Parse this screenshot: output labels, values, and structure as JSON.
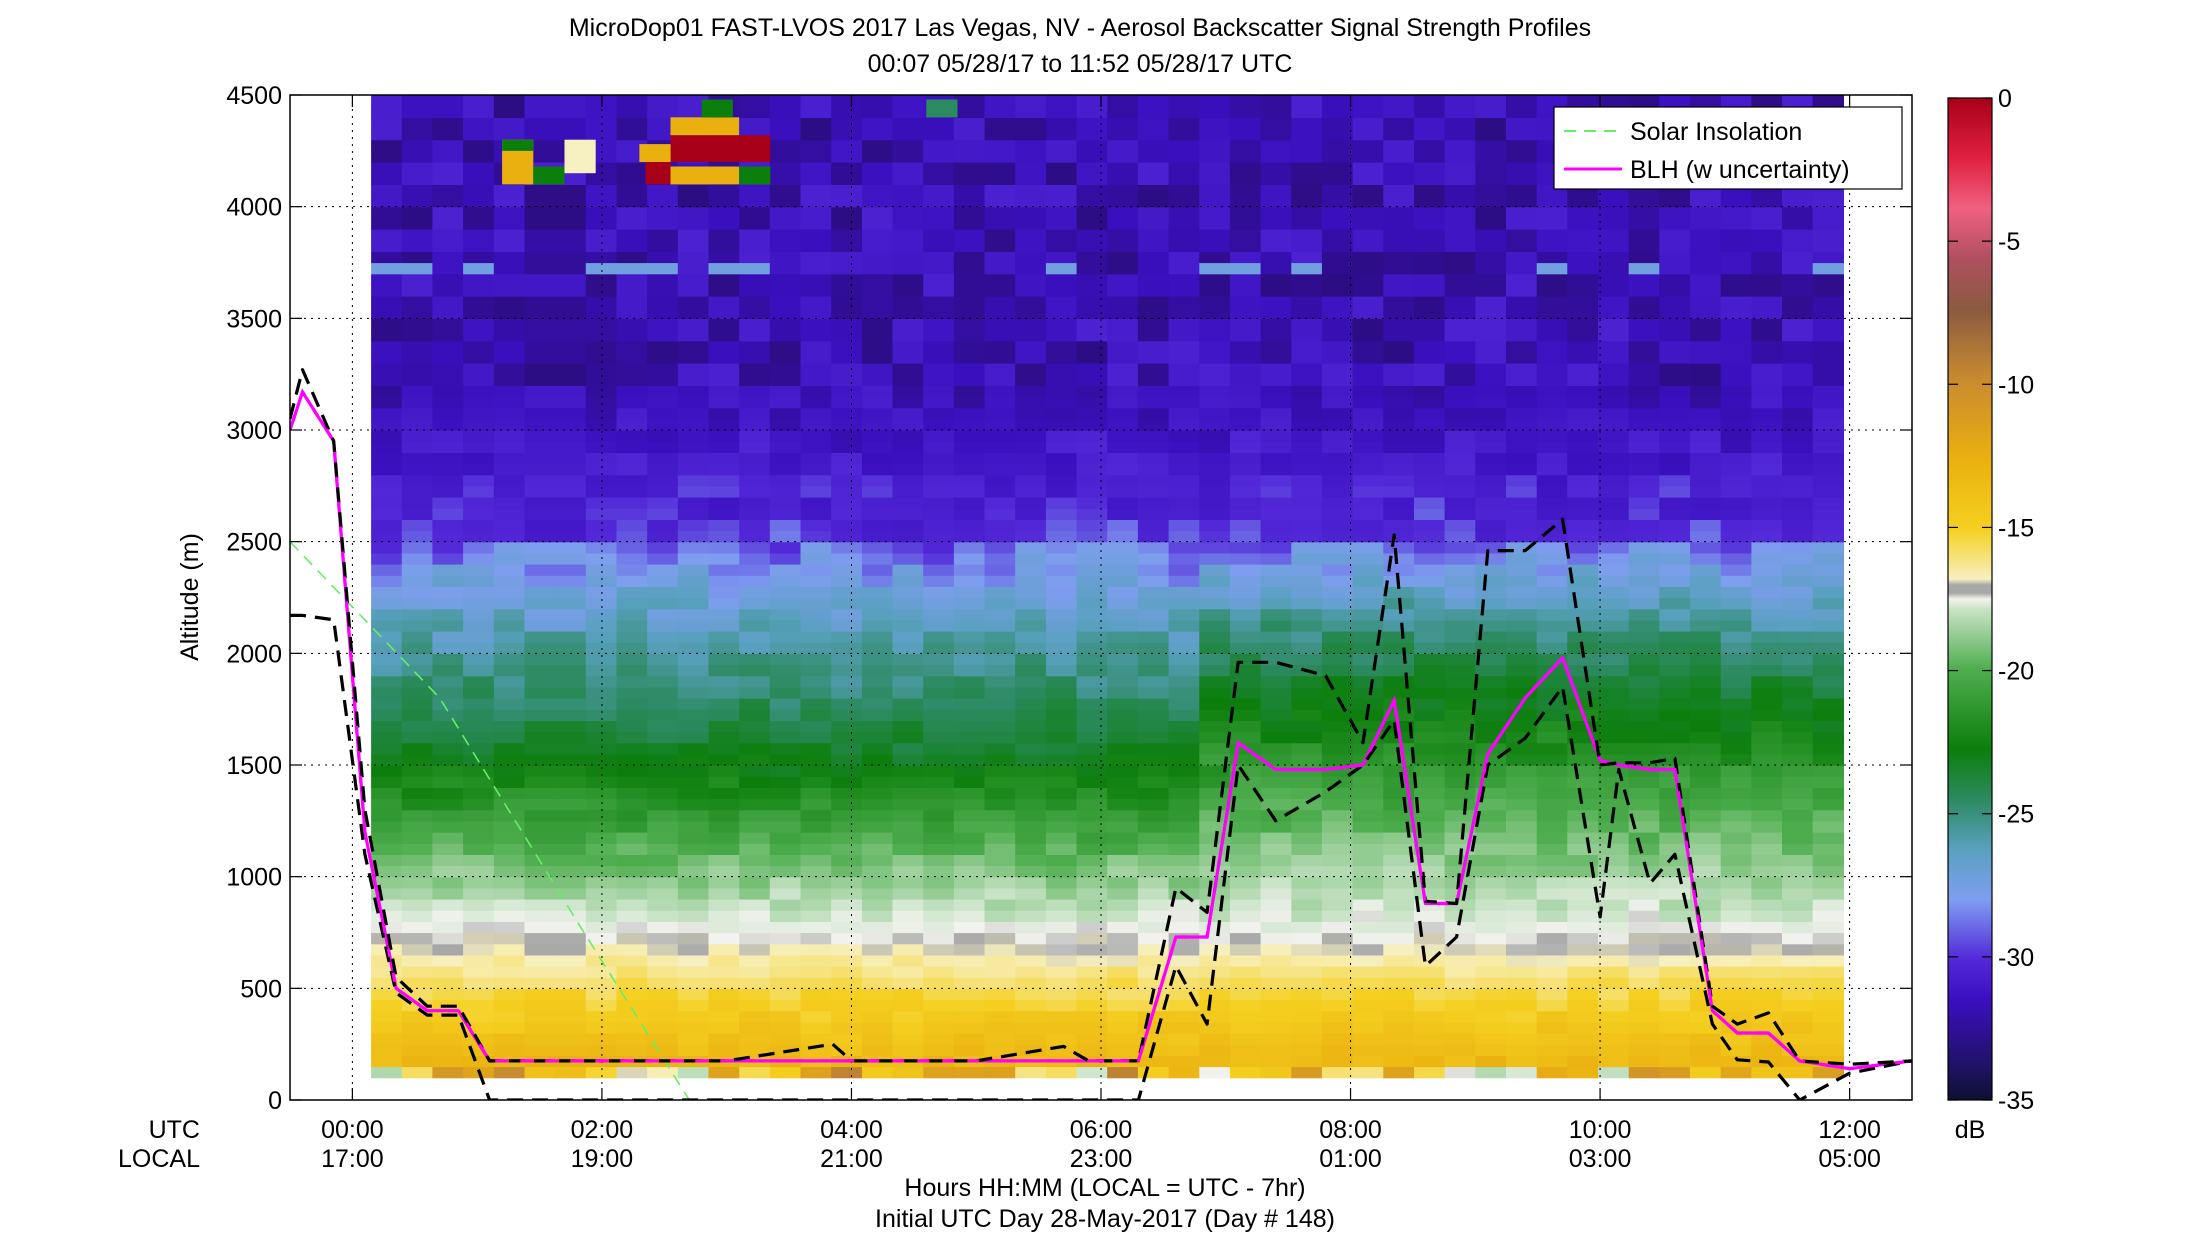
{
  "chart_data": {
    "type": "heatmap",
    "title": "MicroDop01 FAST-LVOS 2017 Las Vegas, NV - Aerosol Backscatter Signal Strength Profiles",
    "subtitle": "00:07 05/28/17 to 11:52 05/28/17  UTC",
    "ylabel": "Altitude (m)",
    "xlabel": "Hours HH:MM  (LOCAL = UTC - 7hr)",
    "footer": "Initial UTC Day 28-May-2017 (Day # 148)",
    "x_row_labels": [
      "UTC",
      "LOCAL"
    ],
    "xlim": [
      -0.5,
      12.5
    ],
    "ylim": [
      0,
      4500
    ],
    "x_ticks": [
      {
        "x": 0,
        "utc": "00:00",
        "local": "17:00"
      },
      {
        "x": 2,
        "utc": "02:00",
        "local": "19:00"
      },
      {
        "x": 4,
        "utc": "04:00",
        "local": "21:00"
      },
      {
        "x": 6,
        "utc": "06:00",
        "local": "23:00"
      },
      {
        "x": 8,
        "utc": "08:00",
        "local": "01:00"
      },
      {
        "x": 10,
        "utc": "10:00",
        "local": "03:00"
      },
      {
        "x": 12,
        "utc": "12:00",
        "local": "05:00"
      }
    ],
    "y_ticks": [
      "0",
      "500",
      "1000",
      "1500",
      "2000",
      "2500",
      "3000",
      "3500",
      "4000",
      "4500"
    ],
    "colorbar": {
      "range": [
        -35,
        0
      ],
      "unit": "dB",
      "ticks": [
        "0",
        "-5",
        "-10",
        "-15",
        "-20",
        "-25",
        "-30",
        "-35"
      ]
    },
    "legend": {
      "placement": "top-right",
      "entries": [
        {
          "label": "Solar Insolation",
          "color": "#66ee66",
          "style": "dashed"
        },
        {
          "label": "BLH (w uncertainty)",
          "color": "#ff00ff",
          "style": "solid"
        }
      ]
    },
    "series": [
      {
        "name": "BLH (w uncertainty)",
        "x": [
          -0.5,
          -0.4,
          -0.15,
          0.1,
          0.35,
          0.6,
          0.85,
          1.1,
          1.35,
          2.0,
          3.0,
          3.85,
          4.0,
          4.5,
          5.0,
          5.7,
          6.0,
          6.3,
          6.6,
          6.85,
          7.1,
          7.4,
          7.8,
          8.1,
          8.35,
          8.6,
          8.85,
          9.1,
          9.4,
          9.7,
          10.0,
          10.15,
          10.4,
          10.6,
          10.9,
          11.1,
          11.35,
          11.6,
          12.0,
          12.5
        ],
        "y": [
          3000,
          3170,
          2950,
          1200,
          500,
          400,
          400,
          175,
          175,
          175,
          175,
          175,
          175,
          175,
          175,
          175,
          175,
          175,
          730,
          730,
          1600,
          1480,
          1480,
          1500,
          1790,
          880,
          880,
          1550,
          1800,
          1980,
          1520,
          1500,
          1480,
          1480,
          400,
          300,
          300,
          175,
          140,
          175
        ]
      },
      {
        "name": "BLH upper bound",
        "x": [
          -0.5,
          -0.4,
          -0.15,
          0.1,
          0.35,
          0.6,
          0.85,
          1.1,
          1.35,
          2.0,
          3.0,
          3.85,
          4.0,
          4.5,
          5.0,
          5.7,
          5.9,
          6.3,
          6.6,
          6.85,
          7.1,
          7.4,
          7.8,
          8.1,
          8.35,
          8.6,
          8.85,
          9.1,
          9.4,
          9.7,
          10.0,
          10.15,
          10.4,
          10.6,
          10.9,
          11.1,
          11.35,
          11.6,
          12.0,
          12.5
        ],
        "y": [
          3050,
          3270,
          2950,
          1300,
          550,
          420,
          420,
          175,
          175,
          175,
          175,
          250,
          175,
          175,
          175,
          240,
          175,
          175,
          950,
          840,
          1960,
          1960,
          1900,
          1600,
          2530,
          890,
          880,
          2460,
          2460,
          2600,
          1500,
          1510,
          1510,
          1530,
          420,
          340,
          390,
          175,
          160,
          175
        ]
      },
      {
        "name": "BLH lower bound",
        "x": [
          -0.5,
          -0.4,
          -0.15,
          0.1,
          0.35,
          0.6,
          0.85,
          1.1,
          1.35,
          2.0,
          3.0,
          3.85,
          4.0,
          4.5,
          5.0,
          5.7,
          6.0,
          6.3,
          6.6,
          6.85,
          7.1,
          7.4,
          7.8,
          8.1,
          8.35,
          8.6,
          8.85,
          9.1,
          9.4,
          9.7,
          10.0,
          10.15,
          10.4,
          10.6,
          10.9,
          11.1,
          11.35,
          11.6,
          12.0,
          12.5
        ],
        "y": [
          2170,
          2170,
          2150,
          1100,
          480,
          380,
          380,
          0,
          0,
          0,
          0,
          0,
          0,
          0,
          0,
          0,
          0,
          0,
          600,
          340,
          1500,
          1250,
          1380,
          1500,
          1700,
          600,
          730,
          1500,
          1620,
          1850,
          820,
          1480,
          970,
          1100,
          340,
          180,
          170,
          0,
          120,
          175
        ]
      },
      {
        "name": "Solar Insolation",
        "x": [
          -0.5,
          0.7,
          1.8,
          2.7
        ],
        "y": [
          2500,
          1800,
          800,
          0
        ]
      }
    ]
  }
}
